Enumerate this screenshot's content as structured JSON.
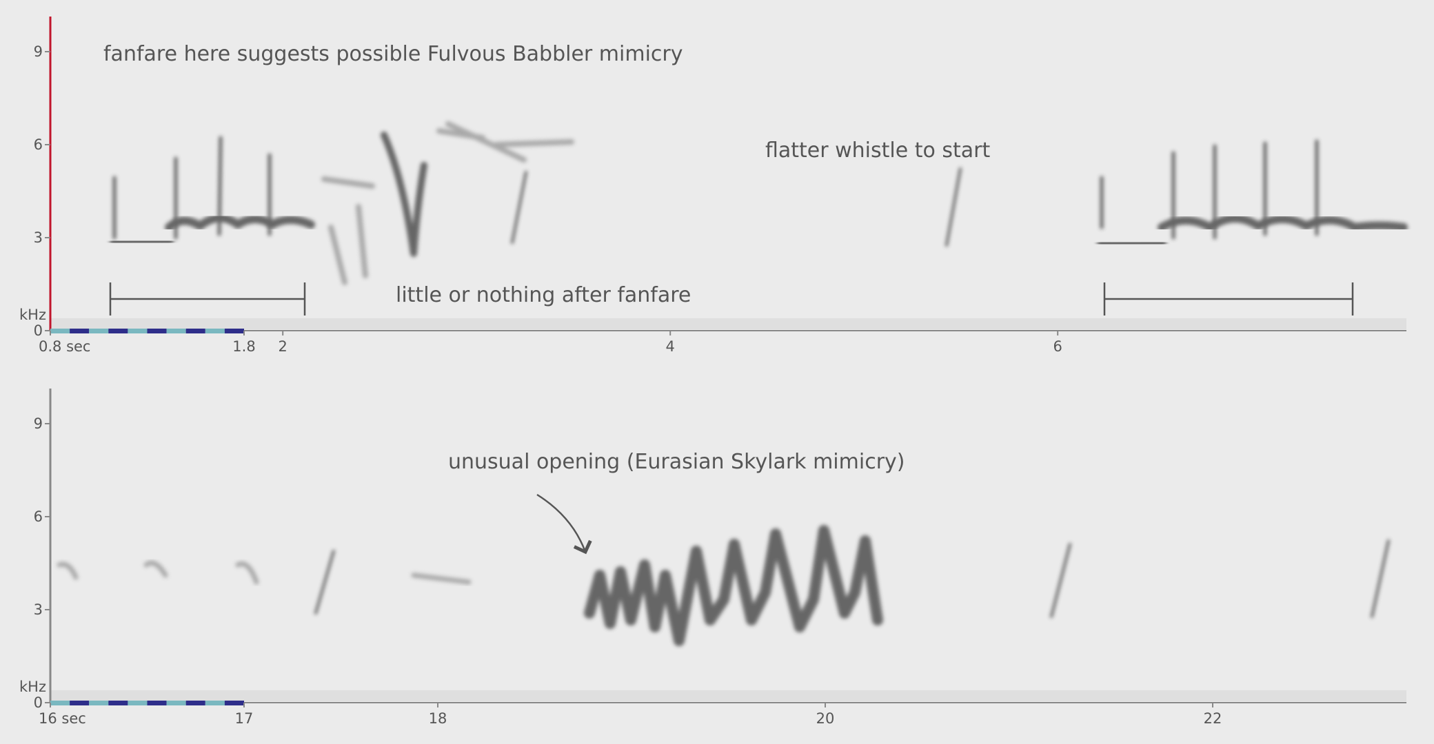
{
  "chart_data": [
    {
      "type": "spectrogram",
      "annotations": [
        "fanfare here suggests possible Fulvous Babbler mimicry",
        "flatter whistle to start",
        "little or nothing after fanfare"
      ],
      "ylabel": "kHz",
      "xlim": [
        0.8,
        7.8
      ],
      "xticks": [
        {
          "value": 0.8,
          "label": "0.8 sec"
        },
        1.8,
        2,
        4,
        6
      ],
      "ylim": [
        0,
        10
      ],
      "yticks": [
        0,
        3,
        6,
        9
      ],
      "axis_color": "#c0152b",
      "start_color": "#c0152b"
    },
    {
      "type": "spectrogram",
      "annotations": [
        "unusual opening (Eurasian Skylark mimicry)"
      ],
      "ylabel": "kHz",
      "xlim": [
        16,
        23
      ],
      "xticks": [
        {
          "value": 16,
          "label": "16 sec"
        },
        17,
        18,
        20,
        22
      ],
      "ylim": [
        0,
        10
      ],
      "yticks": [
        0,
        3,
        6,
        9
      ],
      "axis_color": "#888888",
      "start_color": "#c0152b"
    }
  ]
}
